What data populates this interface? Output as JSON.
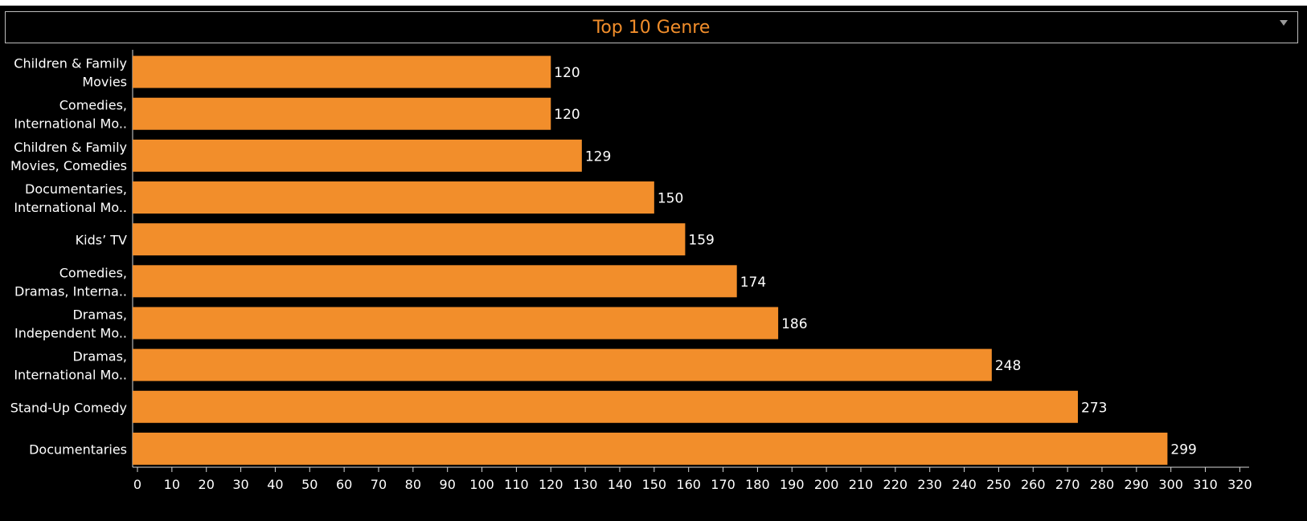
{
  "chart_data": {
    "type": "bar",
    "orientation": "horizontal",
    "title": "Top 10 Genre",
    "xlabel": "",
    "ylabel": "",
    "categories": [
      [
        "Children & Family",
        "Movies"
      ],
      [
        "Comedies,",
        "International Mo.."
      ],
      [
        "Children & Family",
        "Movies, Comedies"
      ],
      [
        "Documentaries,",
        "International Mo.."
      ],
      [
        "Kids’ TV"
      ],
      [
        "Comedies,",
        "Dramas, Interna.."
      ],
      [
        "Dramas,",
        "Independent Mo.."
      ],
      [
        "Dramas,",
        "International Mo.."
      ],
      [
        "Stand-Up Comedy"
      ],
      [
        "Documentaries"
      ]
    ],
    "values": [
      120,
      120,
      129,
      150,
      159,
      174,
      186,
      248,
      273,
      299
    ],
    "xlim": [
      0,
      320
    ],
    "xticks": [
      0,
      10,
      20,
      30,
      40,
      50,
      60,
      70,
      80,
      90,
      100,
      110,
      120,
      130,
      140,
      150,
      160,
      170,
      180,
      190,
      200,
      210,
      220,
      230,
      240,
      250,
      260,
      270,
      280,
      290,
      300,
      310,
      320
    ],
    "grid": false,
    "legend": "none",
    "bar_color": "#f28e2b",
    "background_color": "#000000",
    "title_color": "#f28e2b",
    "text_color": "#ffffff"
  },
  "controls": {
    "dropdown_icon": "chevron-down-icon"
  }
}
